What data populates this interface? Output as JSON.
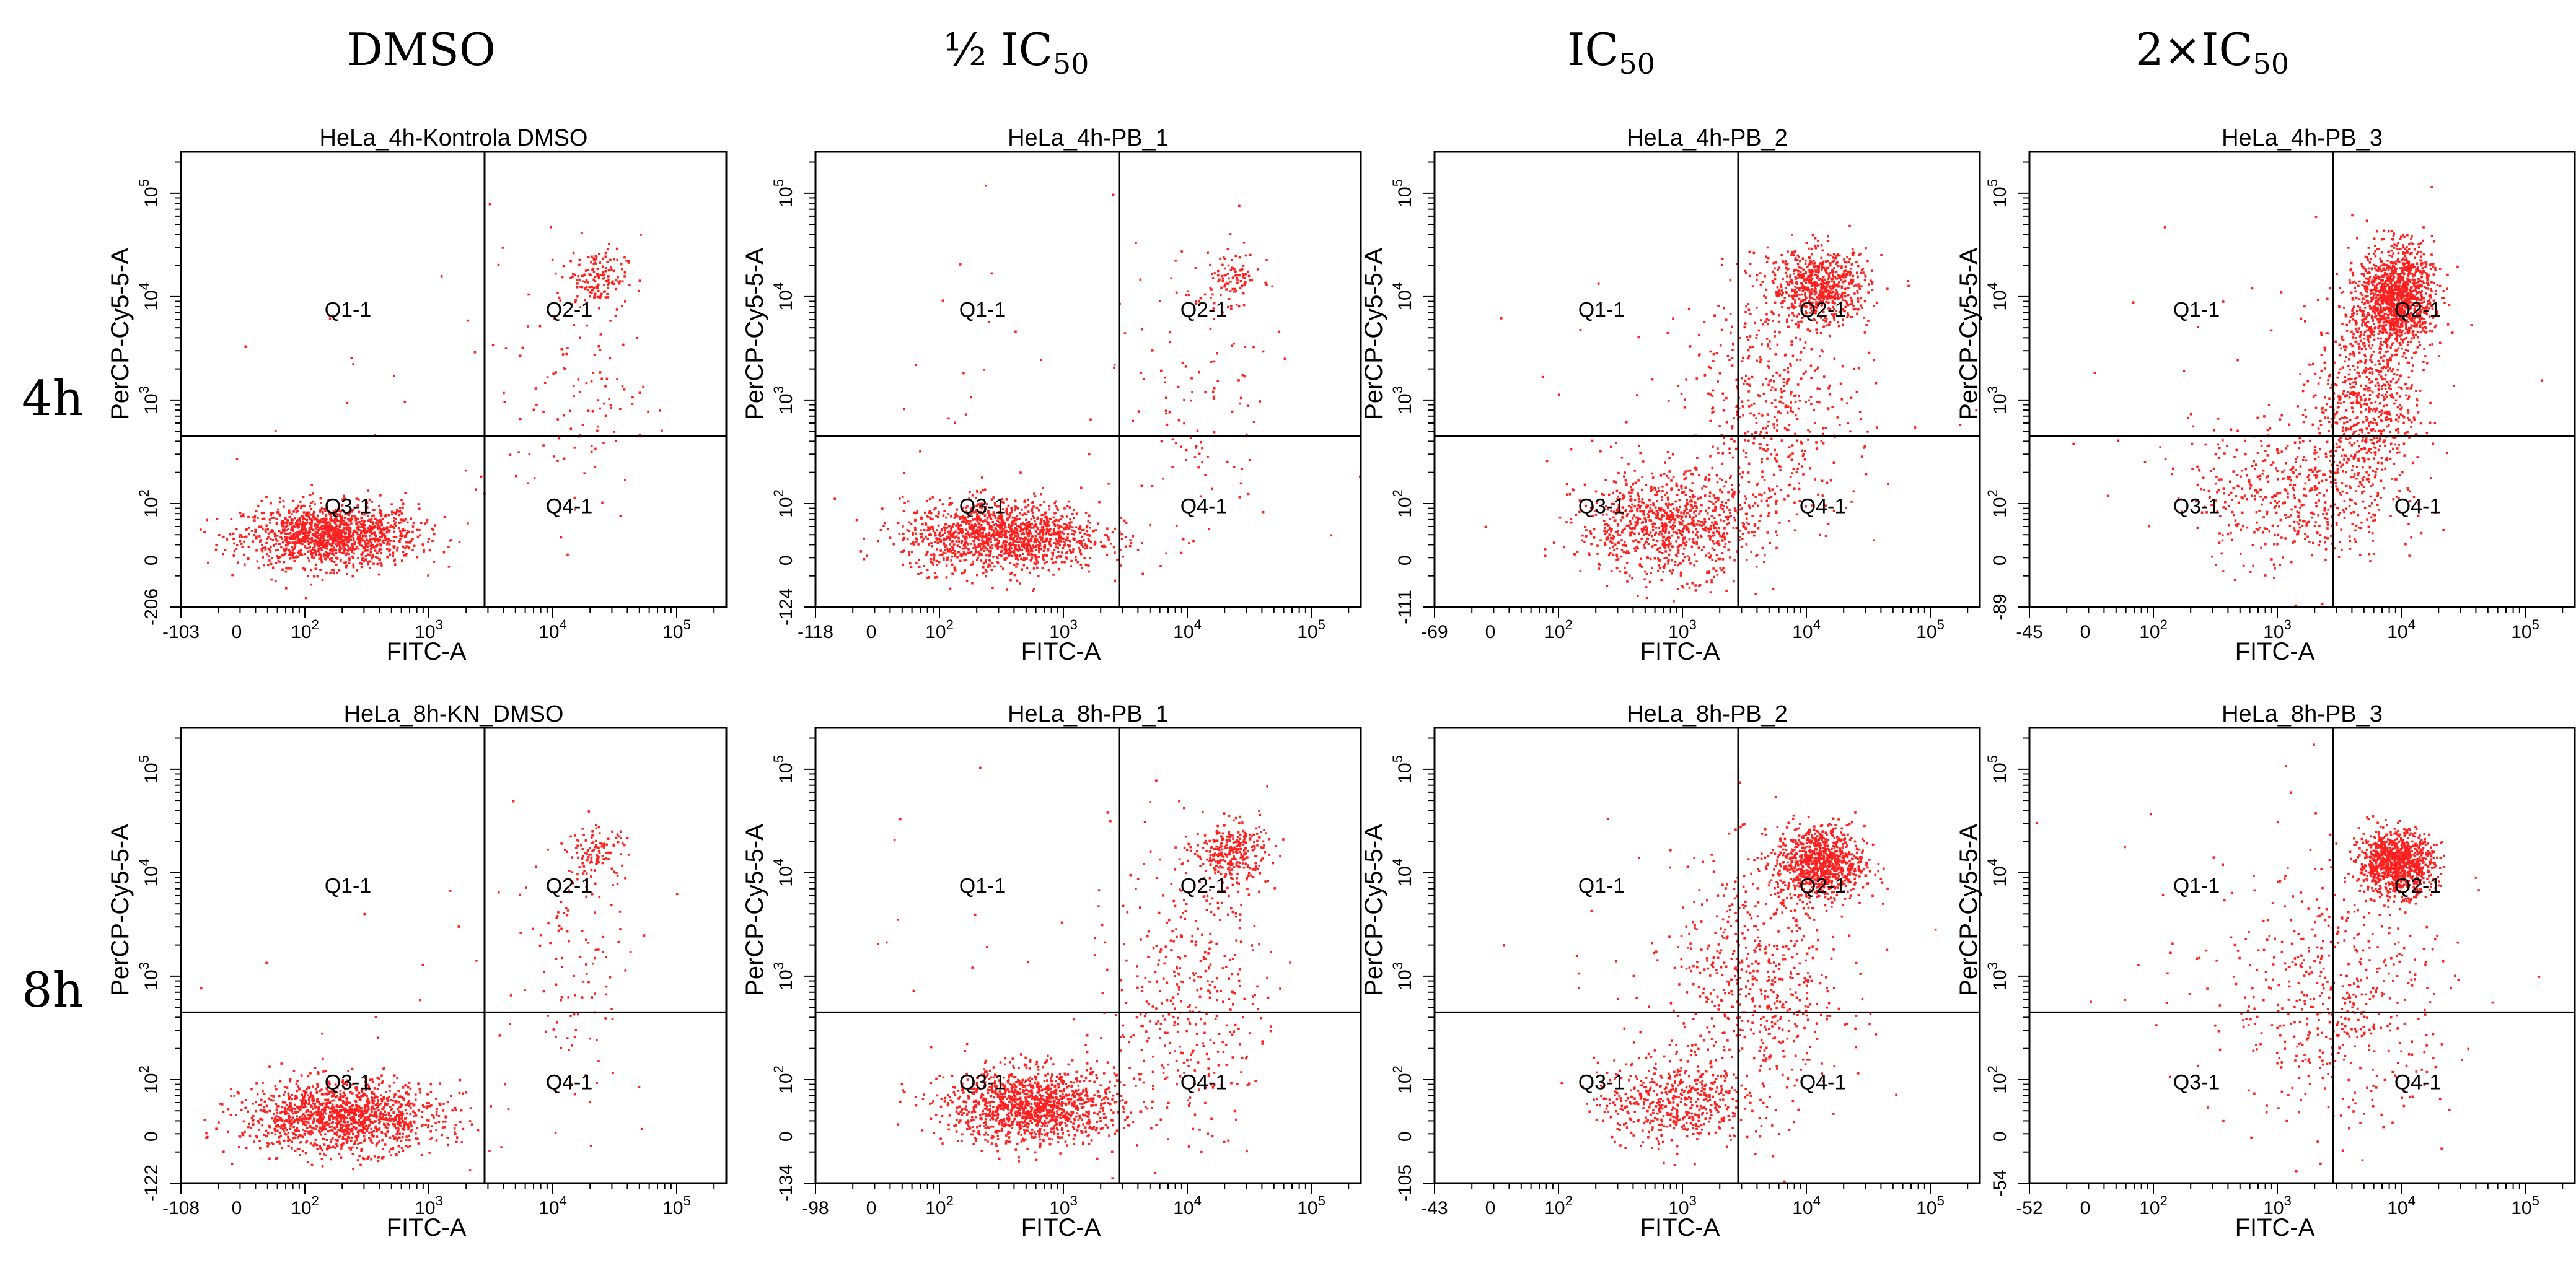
{
  "figure": {
    "column_headers": [
      {
        "main": "DMSO",
        "sub": ""
      },
      {
        "main": "½ IC",
        "sub": "50"
      },
      {
        "main": "IC",
        "sub": "50"
      },
      {
        "main": "2×IC",
        "sub": "50"
      }
    ],
    "row_headers": [
      "4h",
      "8h"
    ],
    "colors": {
      "dots": "#ff2020",
      "frame": "#000000",
      "background": "#ffffff"
    }
  },
  "chart_data": [
    {
      "type": "scatter",
      "title": "HeLa_4h-Kontrola DMSO",
      "xlabel": "FITC-A",
      "ylabel": "PerCP-Cy5-5-A",
      "xmin": "-103",
      "ymin": "-206",
      "gate_x": 3.45,
      "gate_y": 2.65,
      "quadrants": [
        "Q1-1",
        "Q2-1",
        "Q3-1",
        "Q4-1"
      ],
      "x_ticks": [
        "0",
        "10^2",
        "10^3",
        "10^4",
        "10^5"
      ],
      "y_ticks": [
        "0",
        "10^2",
        "10^3",
        "10^4",
        "10^5"
      ],
      "populations": [
        {
          "quadrant": "Q3-1",
          "cx": 2.2,
          "cy": 1.7,
          "sx": 0.35,
          "sy": 0.15,
          "n": 1400
        },
        {
          "quadrant": "Q2-1",
          "cx": 4.35,
          "cy": 4.2,
          "sx": 0.12,
          "sy": 0.13,
          "n": 140
        },
        {
          "quadrant": "Q2/Q4 band",
          "cx": 4.2,
          "cy": 3.2,
          "sx": 0.25,
          "sy": 0.7,
          "n": 120
        },
        {
          "quadrant": "scattered",
          "cx": 3.1,
          "cy": 3.0,
          "sx": 0.9,
          "sy": 0.9,
          "n": 30
        }
      ]
    },
    {
      "type": "scatter",
      "title": "HeLa_4h-PB_1",
      "xlabel": "FITC-A",
      "ylabel": "PerCP-Cy5-5-A",
      "xmin": "-118",
      "ymin": "-124",
      "gate_x": 3.45,
      "gate_y": 2.65,
      "quadrants": [
        "Q1-1",
        "Q2-1",
        "Q3-1",
        "Q4-1"
      ],
      "x_ticks": [
        "0",
        "10^2",
        "10^3",
        "10^4",
        "10^5"
      ],
      "y_ticks": [
        "0",
        "10^2",
        "10^3",
        "10^4",
        "10^5"
      ],
      "populations": [
        {
          "quadrant": "Q3-1",
          "cx": 2.5,
          "cy": 1.7,
          "sx": 0.4,
          "sy": 0.17,
          "n": 1400
        },
        {
          "quadrant": "Q2-1",
          "cx": 4.35,
          "cy": 4.2,
          "sx": 0.12,
          "sy": 0.12,
          "n": 90
        },
        {
          "quadrant": "Q2/Q4 band",
          "cx": 4.1,
          "cy": 3.0,
          "sx": 0.3,
          "sy": 0.8,
          "n": 120
        },
        {
          "quadrant": "scattered",
          "cx": 3.0,
          "cy": 3.0,
          "sx": 0.9,
          "sy": 0.9,
          "n": 30
        }
      ]
    },
    {
      "type": "scatter",
      "title": "HeLa_4h-PB_2",
      "xlabel": "FITC-A",
      "ylabel": "PerCP-Cy5-5-A",
      "xmin": "-69",
      "ymin": "-111",
      "gate_x": 3.45,
      "gate_y": 2.65,
      "quadrants": [
        "Q1-1",
        "Q2-1",
        "Q3-1",
        "Q4-1"
      ],
      "x_ticks": [
        "0",
        "10^2",
        "10^3",
        "10^4",
        "10^5"
      ],
      "y_ticks": [
        "0",
        "10^2",
        "10^3",
        "10^4",
        "10^5"
      ],
      "populations": [
        {
          "quadrant": "Q3-1",
          "cx": 2.85,
          "cy": 1.8,
          "sx": 0.35,
          "sy": 0.25,
          "n": 900
        },
        {
          "quadrant": "Q2-1",
          "cx": 4.1,
          "cy": 4.1,
          "sx": 0.2,
          "sy": 0.18,
          "n": 700
        },
        {
          "quadrant": "Q2/Q4 band",
          "cx": 3.7,
          "cy": 2.9,
          "sx": 0.35,
          "sy": 0.6,
          "n": 500
        },
        {
          "quadrant": "scattered",
          "cx": 3.0,
          "cy": 3.0,
          "sx": 0.9,
          "sy": 0.9,
          "n": 40
        }
      ]
    },
    {
      "type": "scatter",
      "title": "HeLa_4h-PB_3",
      "xlabel": "FITC-A",
      "ylabel": "PerCP-Cy5-5-A",
      "xmin": "-45",
      "ymin": "-89",
      "gate_x": 3.45,
      "gate_y": 2.65,
      "quadrants": [
        "Q1-1",
        "Q2-1",
        "Q3-1",
        "Q4-1"
      ],
      "x_ticks": [
        "0",
        "10^2",
        "10^3",
        "10^4",
        "10^5"
      ],
      "y_ticks": [
        "0",
        "10^2",
        "10^3",
        "10^4",
        "10^5"
      ],
      "populations": [
        {
          "quadrant": "Q2-1",
          "cx": 3.95,
          "cy": 4.0,
          "sx": 0.15,
          "sy": 0.25,
          "n": 1300
        },
        {
          "quadrant": "Q2/Q4 band",
          "cx": 3.7,
          "cy": 3.0,
          "sx": 0.2,
          "sy": 0.5,
          "n": 700
        },
        {
          "quadrant": "Q3-1",
          "cx": 3.1,
          "cy": 2.1,
          "sx": 0.4,
          "sy": 0.35,
          "n": 500
        },
        {
          "quadrant": "scattered",
          "cx": 3.0,
          "cy": 3.0,
          "sx": 0.9,
          "sy": 0.9,
          "n": 40
        }
      ]
    },
    {
      "type": "scatter",
      "title": "HeLa_8h-KN_DMSO",
      "xlabel": "FITC-A",
      "ylabel": "PerCP-Cy5-5-A",
      "xmin": "-108",
      "ymin": "-122",
      "gate_x": 3.45,
      "gate_y": 2.65,
      "quadrants": [
        "Q1-1",
        "Q2-1",
        "Q3-1",
        "Q4-1"
      ],
      "x_ticks": [
        "0",
        "10^2",
        "10^3",
        "10^4",
        "10^5"
      ],
      "y_ticks": [
        "0",
        "10^2",
        "10^3",
        "10^4",
        "10^5"
      ],
      "populations": [
        {
          "quadrant": "Q3-1",
          "cx": 2.3,
          "cy": 1.65,
          "sx": 0.4,
          "sy": 0.17,
          "n": 1400
        },
        {
          "quadrant": "Q2-1",
          "cx": 4.35,
          "cy": 4.2,
          "sx": 0.12,
          "sy": 0.12,
          "n": 110
        },
        {
          "quadrant": "Q2/Q4 band",
          "cx": 4.2,
          "cy": 3.2,
          "sx": 0.25,
          "sy": 0.7,
          "n": 110
        },
        {
          "quadrant": "scattered",
          "cx": 3.1,
          "cy": 3.0,
          "sx": 0.9,
          "sy": 0.9,
          "n": 25
        }
      ]
    },
    {
      "type": "scatter",
      "title": "HeLa_8h-PB_1",
      "xlabel": "FITC-A",
      "ylabel": "PerCP-Cy5-5-A",
      "xmin": "-98",
      "ymin": "-134",
      "gate_x": 3.45,
      "gate_y": 2.65,
      "quadrants": [
        "Q1-1",
        "Q2-1",
        "Q3-1",
        "Q4-1"
      ],
      "x_ticks": [
        "0",
        "10^2",
        "10^3",
        "10^4",
        "10^5"
      ],
      "y_ticks": [
        "0",
        "10^2",
        "10^3",
        "10^4",
        "10^5"
      ],
      "populations": [
        {
          "quadrant": "Q3-1",
          "cx": 2.75,
          "cy": 1.75,
          "sx": 0.35,
          "sy": 0.18,
          "n": 1300
        },
        {
          "quadrant": "Q2-1",
          "cx": 4.35,
          "cy": 4.2,
          "sx": 0.15,
          "sy": 0.15,
          "n": 300
        },
        {
          "quadrant": "Q2/Q4 band",
          "cx": 4.0,
          "cy": 2.9,
          "sx": 0.3,
          "sy": 0.7,
          "n": 400
        },
        {
          "quadrant": "scattered",
          "cx": 3.0,
          "cy": 3.0,
          "sx": 0.9,
          "sy": 0.9,
          "n": 30
        }
      ]
    },
    {
      "type": "scatter",
      "title": "HeLa_8h-PB_2",
      "xlabel": "FITC-A",
      "ylabel": "PerCP-Cy5-5-A",
      "xmin": "-43",
      "ymin": "-105",
      "gate_x": 3.45,
      "gate_y": 2.65,
      "quadrants": [
        "Q1-1",
        "Q2-1",
        "Q3-1",
        "Q4-1"
      ],
      "x_ticks": [
        "0",
        "10^2",
        "10^3",
        "10^4",
        "10^5"
      ],
      "y_ticks": [
        "0",
        "10^2",
        "10^3",
        "10^4",
        "10^5"
      ],
      "populations": [
        {
          "quadrant": "Q2-1",
          "cx": 4.1,
          "cy": 4.1,
          "sx": 0.18,
          "sy": 0.18,
          "n": 900
        },
        {
          "quadrant": "Q3-1",
          "cx": 2.9,
          "cy": 1.8,
          "sx": 0.3,
          "sy": 0.2,
          "n": 500
        },
        {
          "quadrant": "Q2/Q4 band",
          "cx": 3.6,
          "cy": 2.9,
          "sx": 0.35,
          "sy": 0.6,
          "n": 600
        },
        {
          "quadrant": "scattered",
          "cx": 3.0,
          "cy": 3.0,
          "sx": 0.9,
          "sy": 0.9,
          "n": 40
        }
      ]
    },
    {
      "type": "scatter",
      "title": "HeLa_8h-PB_3",
      "xlabel": "FITC-A",
      "ylabel": "PerCP-Cy5-5-A",
      "xmin": "-52",
      "ymin": "-54",
      "gate_x": 3.45,
      "gate_y": 2.65,
      "quadrants": [
        "Q1-1",
        "Q2-1",
        "Q3-1",
        "Q4-1"
      ],
      "x_ticks": [
        "0",
        "10^2",
        "10^3",
        "10^4",
        "10^5"
      ],
      "y_ticks": [
        "0",
        "10^2",
        "10^3",
        "10^4",
        "10^5"
      ],
      "populations": [
        {
          "quadrant": "Q2-1",
          "cx": 3.95,
          "cy": 4.1,
          "sx": 0.15,
          "sy": 0.15,
          "n": 1000
        },
        {
          "quadrant": "Q2/Q4 band",
          "cx": 3.5,
          "cy": 2.8,
          "sx": 0.45,
          "sy": 0.6,
          "n": 500
        },
        {
          "quadrant": "scattered",
          "cx": 3.0,
          "cy": 3.0,
          "sx": 0.9,
          "sy": 0.9,
          "n": 60
        }
      ]
    }
  ]
}
